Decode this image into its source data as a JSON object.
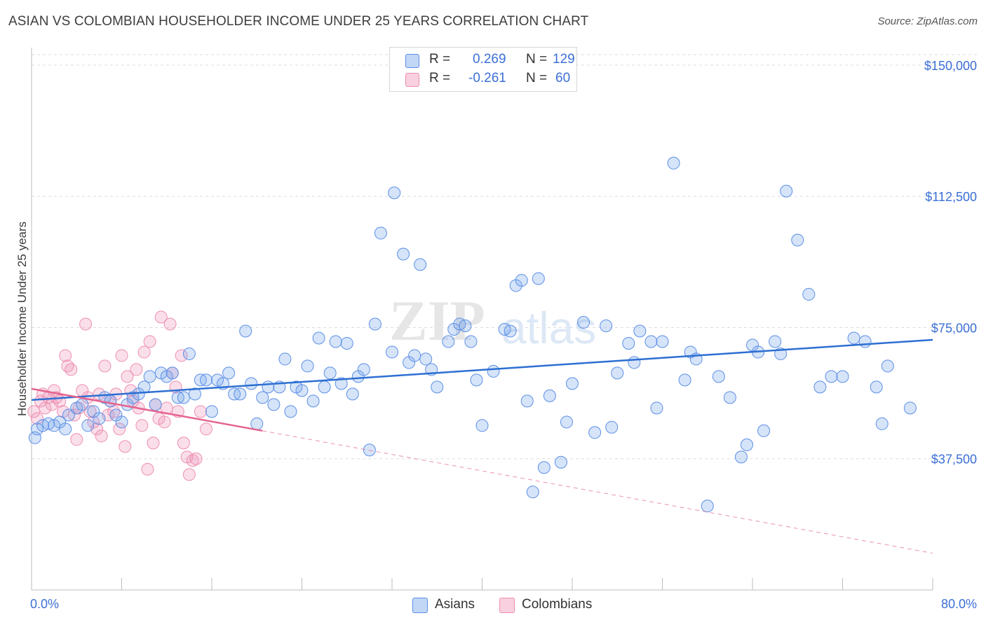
{
  "title": "ASIAN VS COLOMBIAN HOUSEHOLDER INCOME UNDER 25 YEARS CORRELATION CHART",
  "source": "Source: ZipAtlas.com",
  "legend": {
    "rows": [
      {
        "r_label": "R =",
        "r_value": "0.269",
        "n_label": "N =",
        "n_value": "129"
      },
      {
        "r_label": "R =",
        "r_value": "-0.261",
        "n_label": "N =",
        "n_value": "60"
      }
    ]
  },
  "bottom_legend": [
    "Asians",
    "Colombians"
  ],
  "x_tick_labels": {
    "left": "0.0%",
    "right": "80.0%"
  },
  "colors": {
    "blue": "#5b8fe6",
    "blue_fill": "rgba(120,165,235,0.30)",
    "blue_line": "#2d6fd2",
    "pink": "#ee8fb0",
    "pink_fill": "rgba(240,150,185,0.30)",
    "pink_line": "#e4638f",
    "axis_text": "#3b6fd6"
  },
  "chart_data": {
    "type": "scatter",
    "title": "ASIAN VS COLOMBIAN HOUSEHOLDER INCOME UNDER 25 YEARS CORRELATION CHART",
    "xlabel": "",
    "ylabel": "Householder Income Under 25 years",
    "xlim": [
      0,
      80
    ],
    "ylim": [
      0,
      153000
    ],
    "y_ticks": [
      37500,
      75000,
      112500,
      150000
    ],
    "y_tick_labels": [
      "$37,500",
      "$75,000",
      "$112,500",
      "$150,000"
    ],
    "x_tick_labels": [
      "0.0%",
      "80.0%"
    ],
    "grid": true,
    "legend_position": "top-center",
    "series": [
      {
        "name": "Asians",
        "trend": {
          "x0": 0,
          "y0": 54300,
          "x1": 80,
          "y1": 71500
        },
        "points": [
          [
            0.3,
            43500
          ],
          [
            0.5,
            46000
          ],
          [
            1,
            47000
          ],
          [
            1.5,
            47500
          ],
          [
            2,
            47000
          ],
          [
            2.5,
            48000
          ],
          [
            3,
            46000
          ],
          [
            3.3,
            50000
          ],
          [
            4,
            52000
          ],
          [
            4.5,
            53000
          ],
          [
            5,
            47000
          ],
          [
            5.5,
            51000
          ],
          [
            6,
            49000
          ],
          [
            6.5,
            55000
          ],
          [
            7,
            54000
          ],
          [
            7.5,
            50000
          ],
          [
            8,
            48000
          ],
          [
            8.5,
            53000
          ],
          [
            9,
            55000
          ],
          [
            9.5,
            56000
          ],
          [
            10,
            58000
          ],
          [
            10.5,
            61000
          ],
          [
            11,
            53000
          ],
          [
            11.5,
            62000
          ],
          [
            12,
            61000
          ],
          [
            12.5,
            62000
          ],
          [
            13,
            55000
          ],
          [
            13.5,
            55000
          ],
          [
            14,
            67500
          ],
          [
            14.5,
            56000
          ],
          [
            15,
            60000
          ],
          [
            15.5,
            60000
          ],
          [
            16,
            51000
          ],
          [
            16.5,
            60000
          ],
          [
            17,
            59000
          ],
          [
            17.5,
            62000
          ],
          [
            18,
            56000
          ],
          [
            18.5,
            56000
          ],
          [
            19,
            74000
          ],
          [
            19.5,
            59000
          ],
          [
            20,
            47500
          ],
          [
            20.5,
            55000
          ],
          [
            21,
            58000
          ],
          [
            21.5,
            53000
          ],
          [
            22,
            58000
          ],
          [
            22.5,
            66000
          ],
          [
            23,
            51000
          ],
          [
            23.5,
            58000
          ],
          [
            24,
            57000
          ],
          [
            24.5,
            64000
          ],
          [
            25,
            54000
          ],
          [
            25.5,
            72000
          ],
          [
            26,
            58000
          ],
          [
            26.5,
            62000
          ],
          [
            27,
            71000
          ],
          [
            27.5,
            59000
          ],
          [
            28,
            70500
          ],
          [
            28.5,
            56000
          ],
          [
            29,
            61000
          ],
          [
            29.5,
            63000
          ],
          [
            30,
            40000
          ],
          [
            30.5,
            76000
          ],
          [
            31,
            102000
          ],
          [
            32,
            68000
          ],
          [
            32.2,
            113500
          ],
          [
            33,
            96000
          ],
          [
            33.5,
            65000
          ],
          [
            34,
            67000
          ],
          [
            34.5,
            93000
          ],
          [
            35,
            66000
          ],
          [
            35.5,
            63000
          ],
          [
            36,
            58000
          ],
          [
            37,
            71000
          ],
          [
            37.5,
            74500
          ],
          [
            38,
            76000
          ],
          [
            38.5,
            75500
          ],
          [
            39,
            71000
          ],
          [
            39.5,
            60000
          ],
          [
            40,
            47000
          ],
          [
            41,
            62500
          ],
          [
            42,
            74500
          ],
          [
            42.5,
            74000
          ],
          [
            43,
            87000
          ],
          [
            43.5,
            88500
          ],
          [
            44,
            54000
          ],
          [
            44.5,
            28000
          ],
          [
            45,
            89000
          ],
          [
            45.5,
            35000
          ],
          [
            46,
            55500
          ],
          [
            47,
            36500
          ],
          [
            47.5,
            48000
          ],
          [
            48,
            59000
          ],
          [
            49,
            76500
          ],
          [
            50,
            45000
          ],
          [
            51,
            75500
          ],
          [
            51.5,
            46500
          ],
          [
            52,
            62000
          ],
          [
            53,
            70500
          ],
          [
            53.5,
            65000
          ],
          [
            54,
            74000
          ],
          [
            55,
            71000
          ],
          [
            55.5,
            52000
          ],
          [
            56,
            71000
          ],
          [
            57,
            122000
          ],
          [
            58,
            60000
          ],
          [
            58.5,
            68000
          ],
          [
            59,
            66000
          ],
          [
            60,
            24000
          ],
          [
            61,
            61000
          ],
          [
            62,
            55000
          ],
          [
            63,
            38000
          ],
          [
            63.5,
            41500
          ],
          [
            64,
            70000
          ],
          [
            64.5,
            68000
          ],
          [
            65,
            45500
          ],
          [
            66,
            71000
          ],
          [
            66.5,
            67500
          ],
          [
            67,
            114000
          ],
          [
            68,
            100000
          ],
          [
            69,
            84500
          ],
          [
            70,
            58000
          ],
          [
            71,
            61000
          ],
          [
            72,
            61000
          ],
          [
            73,
            72000
          ],
          [
            74,
            71000
          ],
          [
            75,
            58000
          ],
          [
            75.5,
            47500
          ],
          [
            76,
            64000
          ],
          [
            78,
            52000
          ]
        ]
      },
      {
        "name": "Colombians",
        "trend": {
          "x0": 0,
          "y0": 57500,
          "x1": 20.5,
          "y1": 45500
        },
        "trend_dashed": {
          "x0": 20.5,
          "y0": 45500,
          "x1": 80,
          "y1": 10500
        },
        "points": [
          [
            0.2,
            51000
          ],
          [
            0.5,
            49000
          ],
          [
            0.8,
            54000
          ],
          [
            1,
            56000
          ],
          [
            1.2,
            52000
          ],
          [
            1.5,
            55000
          ],
          [
            1.8,
            53000
          ],
          [
            2,
            57000
          ],
          [
            2.2,
            55000
          ],
          [
            2.5,
            54000
          ],
          [
            2.8,
            51000
          ],
          [
            3,
            67000
          ],
          [
            3.2,
            64000
          ],
          [
            3.5,
            63000
          ],
          [
            3.8,
            50000
          ],
          [
            4,
            43000
          ],
          [
            4.2,
            52000
          ],
          [
            4.5,
            57000
          ],
          [
            4.8,
            76000
          ],
          [
            5,
            55000
          ],
          [
            5.2,
            51000
          ],
          [
            5.5,
            48000
          ],
          [
            5.8,
            46000
          ],
          [
            6,
            56000
          ],
          [
            6.2,
            44000
          ],
          [
            6.5,
            64000
          ],
          [
            6.8,
            50000
          ],
          [
            7,
            54000
          ],
          [
            7.3,
            51000
          ],
          [
            7.5,
            56000
          ],
          [
            7.8,
            46000
          ],
          [
            8,
            67000
          ],
          [
            8.3,
            41000
          ],
          [
            8.5,
            61000
          ],
          [
            8.8,
            57000
          ],
          [
            9,
            54000
          ],
          [
            9.3,
            63000
          ],
          [
            9.5,
            52000
          ],
          [
            9.8,
            47000
          ],
          [
            10,
            68000
          ],
          [
            10.3,
            34500
          ],
          [
            10.5,
            71000
          ],
          [
            10.8,
            42000
          ],
          [
            11,
            53000
          ],
          [
            11.3,
            49000
          ],
          [
            11.5,
            78000
          ],
          [
            11.8,
            48000
          ],
          [
            12,
            52000
          ],
          [
            12.3,
            76000
          ],
          [
            12.5,
            62000
          ],
          [
            12.8,
            58000
          ],
          [
            13,
            51000
          ],
          [
            13.3,
            67000
          ],
          [
            13.5,
            42000
          ],
          [
            13.8,
            38000
          ],
          [
            14,
            33000
          ],
          [
            14.3,
            37000
          ],
          [
            14.6,
            37500
          ],
          [
            15,
            51000
          ],
          [
            15.5,
            46000
          ]
        ]
      }
    ]
  }
}
